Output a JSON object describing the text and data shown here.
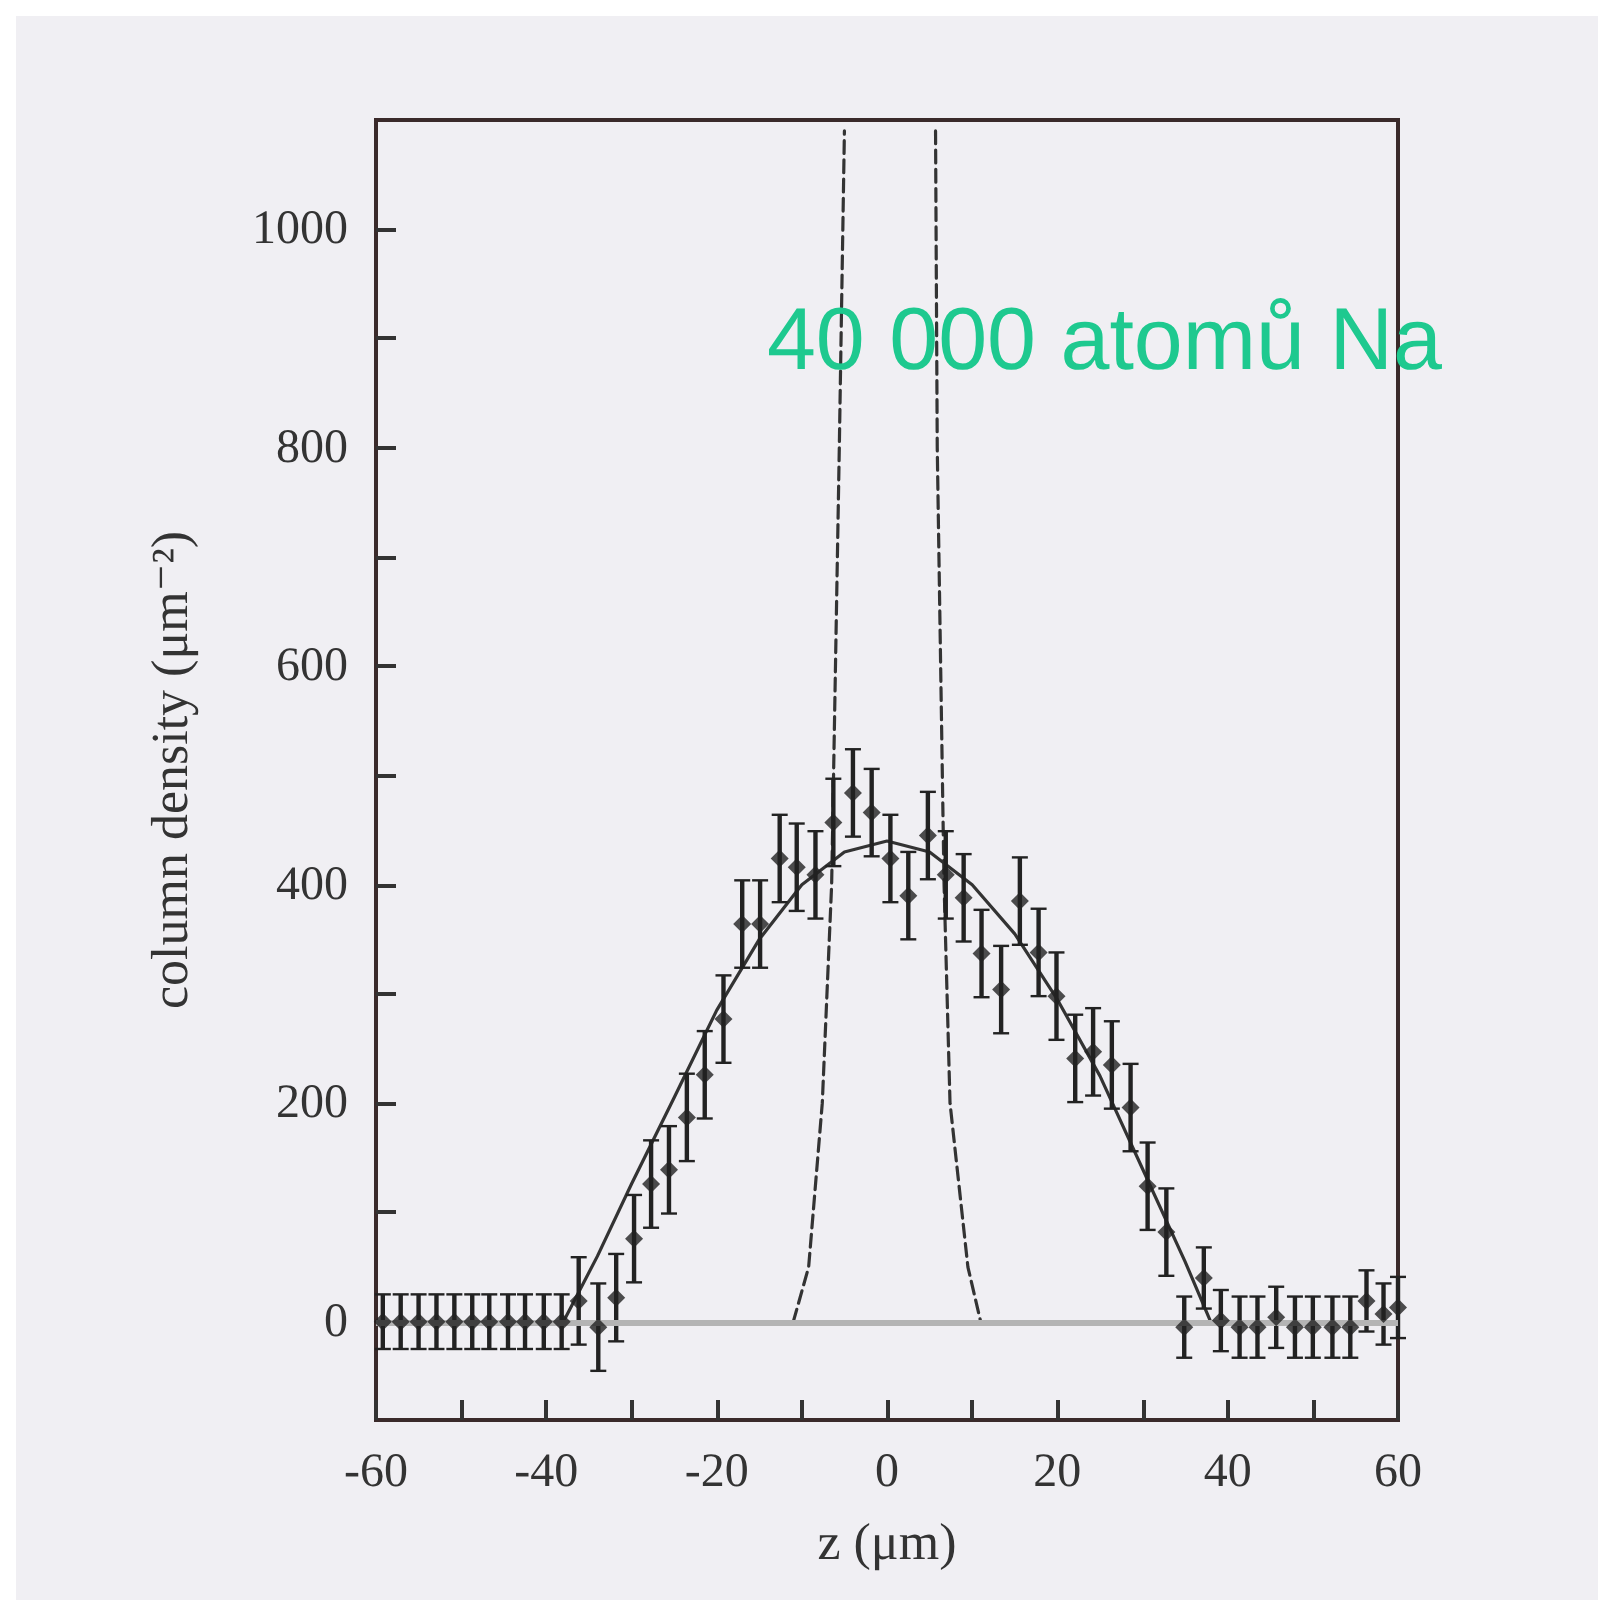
{
  "chart_data": {
    "type": "scatter",
    "xlabel": "z (μm)",
    "ylabel": "column density (μm⁻²)",
    "annotations": [
      "40 000 atomů Na"
    ],
    "xlim": [
      -60,
      60
    ],
    "xticks": [
      -60,
      {
        "value": -50,
        "label": null
      },
      -40,
      {
        "value": -30,
        "label": null
      },
      -20,
      {
        "value": -10,
        "label": null
      },
      0,
      {
        "value": 10,
        "label": null
      },
      20,
      {
        "value": 30,
        "label": null
      },
      40,
      {
        "value": 50,
        "label": null
      },
      60
    ],
    "ylim": [
      -90,
      1100
    ],
    "yticks": [
      0,
      {
        "value": 100,
        "label": null
      },
      200,
      {
        "value": 300,
        "label": null
      },
      400,
      {
        "value": 500,
        "label": null
      },
      600,
      {
        "value": 700,
        "label": null
      },
      800,
      {
        "value": 900,
        "label": null
      },
      1000
    ],
    "grid": false,
    "ref_lines": [
      {
        "axis": "y",
        "value": 0,
        "color": "#b4b4b4"
      }
    ],
    "series": [
      {
        "color": "#222222",
        "marker": "diamond",
        "x": [
          -59.2,
          -57.1,
          -55.0,
          -52.9,
          -50.8,
          -48.7,
          -46.7,
          -44.5,
          -42.5,
          -40.3,
          -38.2,
          -36.2,
          -33.9,
          -31.8,
          -29.7,
          -27.7,
          -25.6,
          -23.5,
          -21.4,
          -19.2,
          -17.0,
          -14.9,
          -12.6,
          -10.6,
          -8.4,
          -6.3,
          -4.0,
          -1.8,
          0.4,
          2.5,
          4.8,
          6.9,
          9.0,
          11.1,
          13.4,
          15.6,
          17.8,
          19.9,
          22.1,
          24.2,
          26.4,
          28.6,
          30.6,
          32.8,
          34.9,
          37.2,
          39.2,
          41.4,
          43.5,
          45.7,
          47.9,
          50.0,
          52.3,
          54.4,
          56.3,
          58.3,
          60.0
        ],
        "values": [
          0,
          0,
          0,
          0,
          0,
          0,
          0,
          0,
          0,
          0,
          0,
          19,
          -5,
          22,
          76,
          126,
          139,
          187,
          226,
          277,
          364,
          364,
          424,
          416,
          409,
          457,
          484,
          466,
          424,
          390,
          445,
          409,
          388,
          337,
          304,
          385,
          338,
          298,
          241,
          247,
          235,
          196,
          124,
          82,
          -5,
          40,
          1,
          -5,
          -5,
          4,
          -5,
          -5,
          -5,
          -5,
          19,
          7,
          13
        ],
        "errors": [
          25,
          25,
          25,
          25,
          25,
          25,
          25,
          25,
          25,
          25,
          25,
          40,
          40,
          40,
          40,
          40,
          40,
          40,
          40,
          40,
          40,
          40,
          40,
          40,
          40,
          40,
          40,
          40,
          40,
          40,
          40,
          40,
          40,
          40,
          40,
          40,
          40,
          40,
          40,
          40,
          40,
          40,
          40,
          40,
          28,
          28,
          28,
          28,
          28,
          28,
          28,
          28,
          28,
          28,
          28,
          28,
          28
        ]
      },
      {
        "type": "line",
        "color": "#333333",
        "line_style": "solid",
        "marker": "none",
        "x": [
          -38,
          -34,
          -30,
          -25,
          -20,
          -15,
          -10,
          -5,
          0,
          5,
          10,
          15,
          20,
          25,
          30,
          35,
          38
        ],
        "values": [
          0,
          60,
          126,
          205,
          285,
          350,
          400,
          430,
          440,
          430,
          400,
          355,
          295,
          225,
          140,
          55,
          0
        ]
      },
      {
        "type": "line",
        "color": "#333333",
        "line_style": "dashed",
        "marker": "none",
        "x": [
          -11,
          -9.2,
          -7.6,
          -6.5,
          -5.6,
          -5.0,
          0.3,
          5.7,
          5.9,
          6.7,
          7.4,
          9.5,
          11
        ],
        "values": [
          0,
          50,
          200,
          400,
          800,
          1090,
          null,
          1090,
          800,
          400,
          200,
          50,
          0
        ]
      }
    ]
  }
}
